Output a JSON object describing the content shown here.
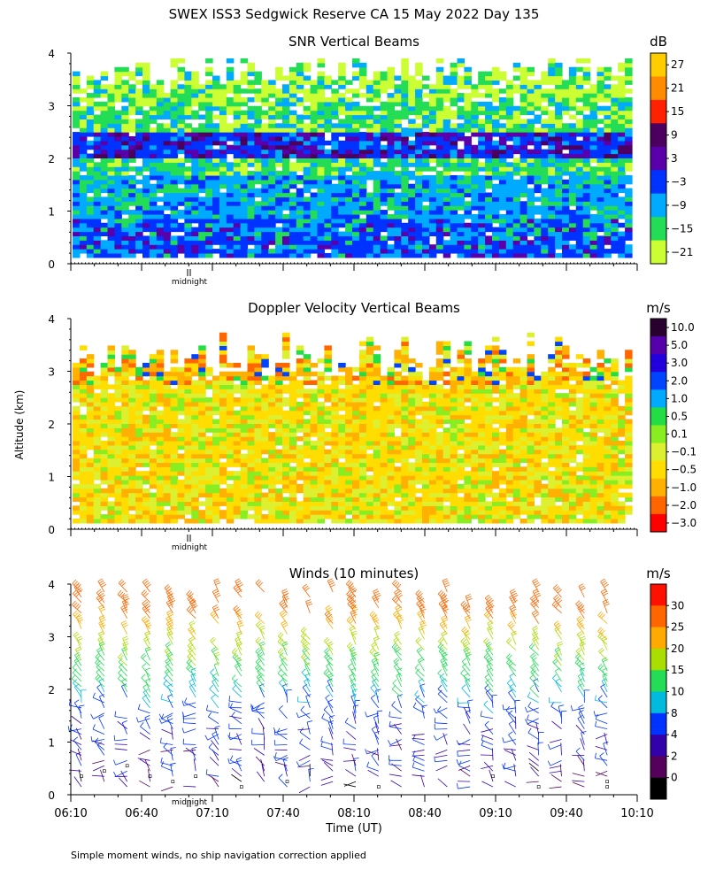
{
  "page_title": "SWEX ISS3 Sedgwick Reserve CA  15 May 2022 Day 135",
  "y_axis_label": "Altitude (km)",
  "x_axis_label": "Time (UT)",
  "footnote": "Simple moment winds, no ship navigation correction applied",
  "colors": {
    "white_gap": "#ffffff",
    "midnight_marker": "#000000"
  },
  "chart_data": [
    {
      "type": "heatmap",
      "title": "SNR Vertical Beams",
      "unit": "dB",
      "ylim": [
        0,
        4
      ],
      "yticks": [
        "0",
        "1",
        "2",
        "3",
        "4"
      ],
      "x_start": "06:10",
      "x_end": "10:10",
      "midnight_label": "midnight",
      "colorbar": {
        "labels": [
          "27",
          "21",
          "15",
          "9",
          "3",
          "−3",
          "−9",
          "−15",
          "−21"
        ],
        "colors": [
          "#ffcc00",
          "#ff8c00",
          "#ff2200",
          "#4b0060",
          "#5a00aa",
          "#0033ff",
          "#00aaff",
          "#22dd55",
          "#ccff33"
        ]
      },
      "layers": [
        {
          "alt_min": 0.1,
          "alt_max": 0.8,
          "value": "-3 to 3 dB (blue/purple)"
        },
        {
          "alt_min": 0.8,
          "alt_max": 1.6,
          "value": "-9 dB (light blue)"
        },
        {
          "alt_min": 1.6,
          "alt_max": 2.0,
          "value": "-15 dB (green)"
        },
        {
          "alt_min": 2.0,
          "alt_max": 2.5,
          "value": "3 to 9 dB (dark blue/purple band)"
        },
        {
          "alt_min": 2.5,
          "alt_max": 3.9,
          "value": "-15 to -21 dB (green/yellow, patchy)"
        }
      ]
    },
    {
      "type": "heatmap",
      "title": "Doppler Velocity Vertical Beams",
      "unit": "m/s",
      "ylim": [
        0,
        4
      ],
      "yticks": [
        "0",
        "1",
        "2",
        "3",
        "4"
      ],
      "x_start": "06:10",
      "x_end": "10:10",
      "midnight_label": "midnight",
      "colorbar": {
        "labels": [
          "10.0",
          "5.0",
          "3.0",
          "2.0",
          "1.0",
          "0.5",
          "0.1",
          "−0.1",
          "−0.5",
          "−1.0",
          "−2.0",
          "−3.0"
        ],
        "colors": [
          "#2a0030",
          "#5500aa",
          "#2200dd",
          "#0044ff",
          "#00aaff",
          "#22dd44",
          "#88ee22",
          "#ddf030",
          "#ffdd00",
          "#ffb000",
          "#ff6600",
          "#ff0000"
        ]
      },
      "layers": [
        {
          "alt_min": 0.1,
          "alt_max": 2.7,
          "value": "-0.1 to -1.0 m/s (yellow/orange)"
        },
        {
          "alt_min": 2.7,
          "alt_max": 3.7,
          "value": "mixed, sparse"
        }
      ]
    },
    {
      "type": "scatter",
      "title": "Winds (10 minutes)",
      "unit": "m/s",
      "ylim": [
        0,
        4
      ],
      "yticks": [
        "0",
        "1",
        "2",
        "3",
        "4"
      ],
      "xticks": [
        "06:10",
        "06:40",
        "07:10",
        "07:40",
        "08:10",
        "08:40",
        "09:10",
        "09:40",
        "10:10"
      ],
      "midnight_label": "midnight",
      "colorbar": {
        "labels": [
          "30",
          "25",
          "20",
          "15",
          "10",
          "8",
          "4",
          "2",
          "0"
        ],
        "colors": [
          "#ff1100",
          "#ff6600",
          "#ffaa00",
          "#aadd00",
          "#22dd55",
          "#00bbdd",
          "#0033ff",
          "#3300aa",
          "#55005a",
          "#000000"
        ]
      },
      "profile_speed_by_altitude": [
        {
          "alt": 0.5,
          "speed": 3
        },
        {
          "alt": 1.0,
          "speed": 4
        },
        {
          "alt": 1.5,
          "speed": 6
        },
        {
          "alt": 2.0,
          "speed": 10
        },
        {
          "alt": 2.5,
          "speed": 14
        },
        {
          "alt": 3.0,
          "speed": 20
        },
        {
          "alt": 3.5,
          "speed": 28
        }
      ]
    }
  ]
}
